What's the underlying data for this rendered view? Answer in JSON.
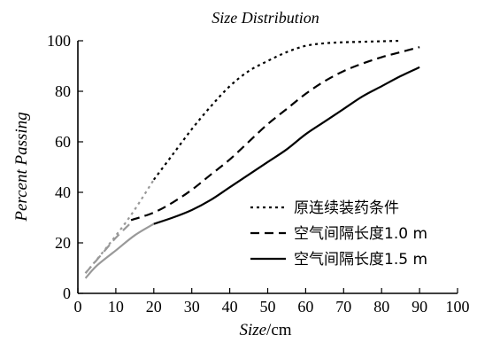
{
  "chart_data": {
    "type": "line",
    "title": "Size Distribution",
    "xlabel_main": "Size",
    "xlabel_unit": "/cm",
    "ylabel": "Percent Passing",
    "xlim": [
      0,
      100
    ],
    "ylim": [
      0,
      100
    ],
    "x_ticks": [
      "0",
      "10",
      "20",
      "30",
      "40",
      "50",
      "60",
      "70",
      "80",
      "90",
      "100"
    ],
    "y_ticks": [
      "0",
      "20",
      "40",
      "60",
      "80",
      "100"
    ],
    "grid": false,
    "legend_position": "bottom-right",
    "series": [
      {
        "name": "原连续装药条件",
        "style": "dotted",
        "color": "#000000",
        "extrapolated_color": "#999999",
        "extrapolated_points": [
          [
            2,
            8
          ],
          [
            8,
            19
          ],
          [
            14,
            31
          ],
          [
            20,
            45
          ]
        ],
        "points": [
          [
            20,
            45
          ],
          [
            25,
            55
          ],
          [
            30,
            65
          ],
          [
            35,
            74
          ],
          [
            40,
            82
          ],
          [
            45,
            88
          ],
          [
            50,
            92
          ],
          [
            55,
            95.5
          ],
          [
            60,
            98
          ],
          [
            65,
            99
          ],
          [
            70,
            99.4
          ],
          [
            75,
            99.6
          ],
          [
            80,
            99.8
          ],
          [
            85,
            100
          ]
        ]
      },
      {
        "name": "空气间隔长度1.0 m",
        "style": "dashed",
        "color": "#000000",
        "extrapolated_color": "#999999",
        "extrapolated_points": [
          [
            2,
            8
          ],
          [
            6,
            15
          ],
          [
            10,
            22
          ],
          [
            14,
            28
          ]
        ],
        "points": [
          [
            14,
            29
          ],
          [
            20,
            32
          ],
          [
            25,
            36
          ],
          [
            30,
            41
          ],
          [
            35,
            47
          ],
          [
            40,
            53
          ],
          [
            45,
            60
          ],
          [
            50,
            67
          ],
          [
            55,
            73
          ],
          [
            60,
            79
          ],
          [
            65,
            84
          ],
          [
            70,
            88
          ],
          [
            75,
            91
          ],
          [
            80,
            93.5
          ],
          [
            85,
            95.5
          ],
          [
            90,
            97.5
          ]
        ]
      },
      {
        "name": "空气间隔长度1.5 m",
        "style": "solid",
        "color": "#000000",
        "extrapolated_color": "#999999",
        "extrapolated_points": [
          [
            2,
            6
          ],
          [
            5,
            11
          ],
          [
            10,
            17
          ],
          [
            15,
            23
          ],
          [
            20,
            27.5
          ]
        ],
        "points": [
          [
            20,
            27.5
          ],
          [
            25,
            30
          ],
          [
            30,
            33
          ],
          [
            35,
            37
          ],
          [
            40,
            42
          ],
          [
            45,
            47
          ],
          [
            50,
            52
          ],
          [
            55,
            57
          ],
          [
            60,
            63
          ],
          [
            65,
            68
          ],
          [
            70,
            73
          ],
          [
            75,
            78
          ],
          [
            80,
            82
          ],
          [
            85,
            86
          ],
          [
            90,
            89.5
          ]
        ]
      }
    ]
  }
}
